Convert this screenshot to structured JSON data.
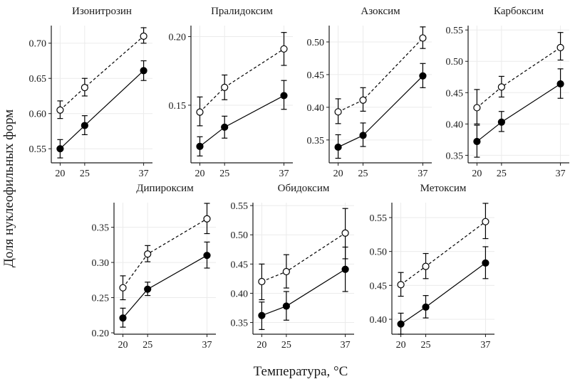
{
  "figure": {
    "xlabel": "Температура, °C",
    "ylabel": "Доля нуклеофильных форм"
  },
  "chart_data": [
    {
      "type": "line",
      "title": "Изонитрозин",
      "x": [
        20,
        25,
        37
      ],
      "xticks": [
        "20",
        "25",
        "37"
      ],
      "yticks": [
        "0.55",
        "0.60",
        "0.65",
        "0.70"
      ],
      "ylim": [
        0.53,
        0.725
      ],
      "series": [
        {
          "style": "dashed",
          "marker": "open-circle",
          "values": [
            0.605,
            0.637,
            0.71
          ],
          "err_low": [
            0.593,
            0.625,
            0.7
          ],
          "err_high": [
            0.618,
            0.65,
            0.722
          ]
        },
        {
          "style": "solid",
          "marker": "filled-circle",
          "values": [
            0.55,
            0.583,
            0.661
          ],
          "err_low": [
            0.537,
            0.57,
            0.647
          ],
          "err_high": [
            0.563,
            0.597,
            0.675
          ]
        }
      ],
      "grid": true
    },
    {
      "type": "line",
      "title": "Пралидоксим",
      "x": [
        20,
        25,
        37
      ],
      "xticks": [
        "20",
        "25",
        "37"
      ],
      "yticks": [
        "0.15",
        "0.20"
      ],
      "ylim": [
        0.108,
        0.208
      ],
      "series": [
        {
          "style": "dashed",
          "marker": "open-circle",
          "values": [
            0.145,
            0.163,
            0.191
          ],
          "err_low": [
            0.135,
            0.154,
            0.179
          ],
          "err_high": [
            0.156,
            0.172,
            0.203
          ]
        },
        {
          "style": "solid",
          "marker": "filled-circle",
          "values": [
            0.12,
            0.134,
            0.157
          ],
          "err_low": [
            0.113,
            0.126,
            0.147
          ],
          "err_high": [
            0.127,
            0.142,
            0.168
          ]
        }
      ],
      "grid": true
    },
    {
      "type": "line",
      "title": "Азоксим",
      "x": [
        20,
        25,
        37
      ],
      "xticks": [
        "20",
        "25",
        "37"
      ],
      "yticks": [
        "0.35",
        "0.40",
        "0.45",
        "0.50"
      ],
      "ylim": [
        0.315,
        0.525
      ],
      "series": [
        {
          "style": "dashed",
          "marker": "open-circle",
          "values": [
            0.393,
            0.411,
            0.506
          ],
          "err_low": [
            0.375,
            0.394,
            0.49
          ],
          "err_high": [
            0.413,
            0.43,
            0.523
          ]
        },
        {
          "style": "solid",
          "marker": "filled-circle",
          "values": [
            0.339,
            0.357,
            0.448
          ],
          "err_low": [
            0.322,
            0.34,
            0.43
          ],
          "err_high": [
            0.358,
            0.376,
            0.467
          ]
        }
      ],
      "grid": true
    },
    {
      "type": "line",
      "title": "Карбоксим",
      "x": [
        20,
        25,
        37
      ],
      "xticks": [
        "20",
        "25",
        "37"
      ],
      "yticks": [
        "0.35",
        "0.40",
        "0.45",
        "0.50",
        "0.55"
      ],
      "ylim": [
        0.338,
        0.557
      ],
      "series": [
        {
          "style": "dashed",
          "marker": "open-circle",
          "values": [
            0.426,
            0.459,
            0.522
          ],
          "err_low": [
            0.4,
            0.443,
            0.502
          ],
          "err_high": [
            0.455,
            0.476,
            0.546
          ]
        },
        {
          "style": "solid",
          "marker": "filled-circle",
          "values": [
            0.372,
            0.403,
            0.464
          ],
          "err_low": [
            0.347,
            0.388,
            0.441
          ],
          "err_high": [
            0.398,
            0.42,
            0.488
          ]
        }
      ],
      "grid": true
    },
    {
      "type": "line",
      "title": "Дипироксим",
      "x": [
        20,
        25,
        37
      ],
      "xticks": [
        "20",
        "25",
        "37"
      ],
      "yticks": [
        "0.20",
        "0.25",
        "0.30",
        "0.35"
      ],
      "ylim": [
        0.198,
        0.385
      ],
      "series": [
        {
          "style": "dashed",
          "marker": "open-circle",
          "values": [
            0.264,
            0.312,
            0.362
          ],
          "err_low": [
            0.247,
            0.301,
            0.341
          ],
          "err_high": [
            0.281,
            0.324,
            0.384
          ]
        },
        {
          "style": "solid",
          "marker": "filled-circle",
          "values": [
            0.221,
            0.262,
            0.31
          ],
          "err_low": [
            0.208,
            0.253,
            0.292
          ],
          "err_high": [
            0.235,
            0.272,
            0.329
          ]
        }
      ],
      "grid": true
    },
    {
      "type": "line",
      "title": "Обидоксим",
      "x": [
        20,
        25,
        37
      ],
      "xticks": [
        "20",
        "25",
        "37"
      ],
      "yticks": [
        "0.35",
        "0.40",
        "0.45",
        "0.50",
        "0.55"
      ],
      "ylim": [
        0.33,
        0.555
      ],
      "series": [
        {
          "style": "dashed",
          "marker": "open-circle",
          "values": [
            0.42,
            0.437,
            0.503
          ],
          "err_low": [
            0.389,
            0.409,
            0.459
          ],
          "err_high": [
            0.45,
            0.466,
            0.545
          ]
        },
        {
          "style": "solid",
          "marker": "filled-circle",
          "values": [
            0.362,
            0.378,
            0.441
          ],
          "err_low": [
            0.338,
            0.354,
            0.403
          ],
          "err_high": [
            0.385,
            0.403,
            0.479
          ]
        }
      ],
      "grid": true
    },
    {
      "type": "line",
      "title": "Метоксим",
      "x": [
        20,
        25,
        37
      ],
      "xticks": [
        "20",
        "25",
        "37"
      ],
      "yticks": [
        "0.40",
        "0.45",
        "0.50",
        "0.55"
      ],
      "ylim": [
        0.378,
        0.572
      ],
      "series": [
        {
          "style": "dashed",
          "marker": "open-circle",
          "values": [
            0.451,
            0.478,
            0.544
          ],
          "err_low": [
            0.434,
            0.46,
            0.519
          ],
          "err_high": [
            0.469,
            0.497,
            0.571
          ]
        },
        {
          "style": "solid",
          "marker": "filled-circle",
          "values": [
            0.393,
            0.418,
            0.483
          ],
          "err_low": [
            0.378,
            0.402,
            0.46
          ],
          "err_high": [
            0.409,
            0.435,
            0.507
          ]
        }
      ],
      "grid": true
    }
  ]
}
